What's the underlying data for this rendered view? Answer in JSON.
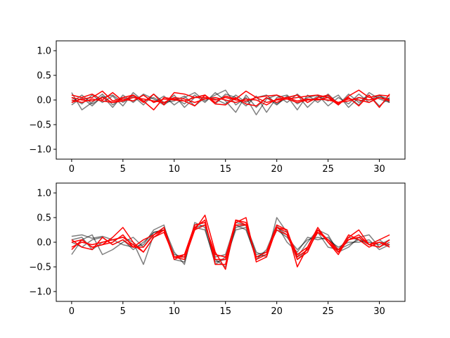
{
  "colors": {
    "gray_series": "#000000",
    "red_series": "#ff0000",
    "frame": "#000000",
    "background": "#ffffff"
  },
  "chart_data": [
    {
      "type": "line",
      "title": "",
      "xlabel": "",
      "ylabel": "",
      "xlim": [
        -1.5,
        32.5
      ],
      "ylim": [
        -1.2,
        1.2
      ],
      "xticks": [
        0,
        5,
        10,
        15,
        20,
        25,
        30
      ],
      "yticks": [
        -1.0,
        -0.5,
        0.0,
        0.5,
        1.0
      ],
      "xtick_labels": [
        "0",
        "5",
        "10",
        "15",
        "20",
        "25",
        "30"
      ],
      "ytick_labels": [
        "−1.0",
        "−0.5",
        "0.0",
        "0.5",
        "1.0"
      ],
      "grid": false,
      "legend": "none",
      "x": [
        0,
        1,
        2,
        3,
        4,
        5,
        6,
        7,
        8,
        9,
        10,
        11,
        12,
        13,
        14,
        15,
        16,
        17,
        18,
        19,
        20,
        21,
        22,
        23,
        24,
        25,
        26,
        27,
        28,
        29,
        30,
        31
      ],
      "series": [
        {
          "color": "gray",
          "values": [
            0.15,
            -0.2,
            -0.05,
            0.12,
            -0.1,
            0.05,
            -0.02,
            0.1,
            -0.05,
            0.08,
            -0.1,
            0.05,
            0.15,
            -0.02,
            0.1,
            0.2,
            -0.1,
            0.05,
            -0.3,
            0.02,
            0.1,
            -0.05,
            0.12,
            -0.05,
            0.08,
            -0.02,
            0.1,
            -0.15,
            0.05,
            0.0,
            0.1,
            -0.05
          ]
        },
        {
          "color": "gray",
          "values": [
            -0.1,
            0.05,
            -0.12,
            0.08,
            -0.15,
            0.1,
            -0.05,
            0.12,
            0.02,
            -0.1,
            0.05,
            -0.08,
            0.1,
            -0.05,
            0.15,
            -0.02,
            -0.25,
            0.1,
            -0.15,
            0.05,
            -0.1,
            0.08,
            -0.2,
            0.1,
            -0.05,
            0.12,
            -0.08,
            0.05,
            -0.1,
            0.15,
            0.02,
            -0.05
          ]
        },
        {
          "color": "gray",
          "values": [
            0.05,
            -0.08,
            0.1,
            -0.05,
            0.08,
            -0.12,
            0.15,
            -0.02,
            0.05,
            -0.08,
            0.1,
            -0.15,
            0.05,
            0.1,
            -0.08,
            0.12,
            0.05,
            -0.12,
            0.08,
            -0.25,
            0.05,
            0.1,
            -0.08,
            0.05,
            0.1,
            -0.12,
            0.05,
            -0.08,
            0.12,
            -0.05,
            0.08,
            0.02
          ]
        },
        {
          "color": "gray",
          "values": [
            -0.05,
            0.1,
            -0.08,
            0.05,
            0.1,
            -0.05,
            0.08,
            -0.1,
            0.12,
            -0.05,
            -0.02,
            0.08,
            -0.12,
            0.05,
            0.02,
            -0.08,
            0.1,
            -0.05,
            0.05,
            0.1,
            -0.08,
            0.05,
            0.1,
            -0.15,
            0.05,
            0.08,
            -0.1,
            0.12,
            -0.05,
            0.1,
            -0.12,
            0.05
          ]
        },
        {
          "color": "red",
          "values": [
            0.1,
            0.05,
            0.12,
            0.0,
            0.15,
            -0.02,
            0.1,
            -0.05,
            0.12,
            -0.1,
            0.15,
            0.12,
            0.05,
            0.1,
            -0.05,
            0.08,
            0.02,
            0.18,
            0.05,
            0.08,
            0.1,
            0.02,
            0.05,
            0.08,
            0.1,
            0.05,
            -0.1,
            0.08,
            0.2,
            0.05,
            0.1,
            0.08
          ]
        },
        {
          "color": "red",
          "values": [
            -0.05,
            0.02,
            0.05,
            0.18,
            -0.02,
            0.05,
            0.1,
            -0.02,
            -0.2,
            0.05,
            0.02,
            -0.02,
            -0.12,
            0.1,
            -0.08,
            -0.1,
            0.05,
            -0.08,
            -0.12,
            0.05,
            -0.05,
            0.05,
            0.1,
            -0.05,
            0.05,
            0.1,
            -0.08,
            0.05,
            -0.12,
            0.1,
            -0.15,
            0.12
          ]
        },
        {
          "color": "red",
          "values": [
            0.0,
            -0.05,
            0.02,
            -0.02,
            -0.05,
            0.02,
            -0.02,
            0.1,
            -0.05,
            0.02,
            0.0,
            -0.02,
            0.05,
            0.05,
            0.0,
            0.05,
            0.0,
            -0.02,
            0.05,
            -0.05,
            0.0,
            0.02,
            -0.05,
            0.0,
            0.02,
            0.0,
            -0.05,
            -0.02,
            0.05,
            0.0,
            0.05,
            0.0
          ]
        },
        {
          "color": "red",
          "values": [
            0.05,
            0.0,
            -0.02,
            0.05,
            -0.05,
            -0.02,
            0.05,
            0.02,
            -0.02,
            -0.05,
            0.05,
            0.02,
            -0.05,
            0.02,
            0.05,
            0.0,
            -0.05,
            0.02,
            0.0,
            -0.1,
            0.02,
            0.05,
            -0.02,
            0.02,
            0.0,
            0.05,
            -0.05,
            0.02,
            0.0,
            -0.05,
            0.05,
            -0.02
          ]
        }
      ]
    },
    {
      "type": "line",
      "title": "",
      "xlabel": "",
      "ylabel": "",
      "xlim": [
        -1.5,
        32.5
      ],
      "ylim": [
        -1.2,
        1.2
      ],
      "xticks": [
        0,
        5,
        10,
        15,
        20,
        25,
        30
      ],
      "yticks": [
        -1.0,
        -0.5,
        0.0,
        0.5,
        1.0
      ],
      "xtick_labels": [
        "0",
        "5",
        "10",
        "15",
        "20",
        "25",
        "30"
      ],
      "ytick_labels": [
        "−1.0",
        "−0.5",
        "0.0",
        "0.5",
        "1.0"
      ],
      "grid": false,
      "legend": "none",
      "x": [
        0,
        1,
        2,
        3,
        4,
        5,
        6,
        7,
        8,
        9,
        10,
        11,
        12,
        13,
        14,
        15,
        16,
        17,
        18,
        19,
        20,
        21,
        22,
        23,
        24,
        25,
        26,
        27,
        28,
        29,
        30,
        31
      ],
      "series": [
        {
          "color": "gray",
          "values": [
            0.12,
            0.15,
            0.08,
            0.12,
            0.05,
            0.1,
            0.0,
            -0.45,
            0.15,
            0.3,
            -0.2,
            -0.45,
            0.4,
            0.3,
            -0.45,
            -0.3,
            0.3,
            0.35,
            -0.2,
            -0.3,
            0.5,
            0.2,
            -0.3,
            0.0,
            0.25,
            0.15,
            -0.2,
            -0.1,
            0.1,
            0.15,
            -0.1,
            0.0
          ]
        },
        {
          "color": "gray",
          "values": [
            -0.25,
            0.05,
            0.15,
            -0.25,
            -0.15,
            0.0,
            0.1,
            -0.1,
            0.2,
            0.25,
            -0.3,
            -0.35,
            0.3,
            0.25,
            -0.4,
            -0.35,
            0.25,
            0.3,
            -0.35,
            -0.15,
            0.35,
            0.0,
            -0.2,
            0.1,
            0.05,
            0.1,
            -0.15,
            -0.05,
            0.05,
            0.0,
            -0.05,
            0.05
          ]
        },
        {
          "color": "gray",
          "values": [
            0.05,
            0.1,
            -0.15,
            0.0,
            0.05,
            -0.05,
            -0.1,
            -0.05,
            0.25,
            0.35,
            -0.35,
            -0.4,
            0.35,
            0.4,
            -0.35,
            -0.5,
            0.35,
            0.25,
            -0.3,
            -0.25,
            0.3,
            0.15,
            -0.35,
            -0.15,
            0.2,
            -0.1,
            -0.15,
            0.1,
            0.05,
            -0.05,
            0.05,
            -0.1
          ]
        },
        {
          "color": "gray",
          "values": [
            0.0,
            -0.1,
            0.05,
            0.1,
            -0.05,
            0.05,
            -0.15,
            0.0,
            0.2,
            0.25,
            -0.25,
            -0.3,
            0.3,
            0.35,
            -0.3,
            -0.25,
            0.4,
            0.35,
            -0.25,
            -0.2,
            0.25,
            0.1,
            -0.15,
            0.05,
            0.1,
            0.05,
            -0.1,
            0.0,
            0.0,
            0.05,
            -0.15,
            -0.05
          ]
        },
        {
          "color": "red",
          "values": [
            -0.15,
            0.05,
            -0.1,
            -0.05,
            0.1,
            0.3,
            0.0,
            -0.2,
            0.1,
            0.25,
            -0.35,
            -0.25,
            0.25,
            0.55,
            -0.2,
            -0.55,
            0.45,
            0.35,
            -0.3,
            -0.2,
            0.35,
            0.25,
            -0.5,
            -0.1,
            0.3,
            0.0,
            -0.25,
            0.1,
            0.25,
            -0.05,
            0.05,
            0.15
          ]
        },
        {
          "color": "red",
          "values": [
            0.05,
            -0.1,
            -0.15,
            0.1,
            -0.05,
            0.05,
            -0.1,
            0.05,
            0.15,
            0.3,
            -0.3,
            -0.3,
            0.3,
            0.45,
            -0.45,
            -0.45,
            0.4,
            0.5,
            -0.4,
            -0.3,
            0.3,
            0.25,
            -0.35,
            -0.2,
            0.25,
            0.05,
            -0.2,
            0.15,
            0.05,
            -0.1,
            0.0,
            -0.05
          ]
        },
        {
          "color": "red",
          "values": [
            -0.1,
            0.0,
            -0.05,
            0.0,
            0.05,
            0.1,
            -0.05,
            -0.2,
            0.1,
            0.2,
            -0.3,
            -0.25,
            0.35,
            0.4,
            -0.35,
            -0.35,
            0.45,
            0.4,
            -0.35,
            -0.25,
            0.3,
            0.2,
            -0.25,
            -0.1,
            0.25,
            0.0,
            -0.2,
            0.05,
            0.1,
            -0.05,
            -0.1,
            0.05
          ]
        },
        {
          "color": "red",
          "values": [
            0.0,
            0.05,
            -0.1,
            -0.05,
            0.0,
            0.15,
            -0.1,
            -0.1,
            0.15,
            0.25,
            -0.3,
            -0.35,
            0.25,
            0.35,
            -0.25,
            -0.3,
            0.35,
            0.35,
            -0.3,
            -0.2,
            0.25,
            0.15,
            -0.3,
            -0.15,
            0.2,
            0.05,
            -0.15,
            0.05,
            0.15,
            -0.05,
            0.0,
            -0.1
          ]
        }
      ]
    }
  ]
}
